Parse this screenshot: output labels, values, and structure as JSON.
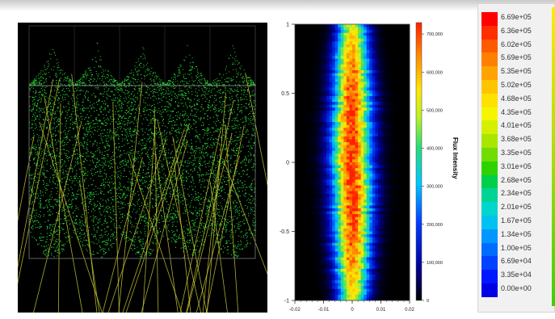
{
  "window": {
    "title": ""
  },
  "left_panel": {
    "title": "",
    "overlay_labels": []
  },
  "middle_panel": {
    "chart_data": {
      "type": "heatmap",
      "title": "",
      "xlabel": "",
      "ylabel": "",
      "colorbar_label": "Flux Intensity",
      "x_ticks": [
        "-0.02",
        "-0.01",
        "0",
        "0.01",
        "0.02"
      ],
      "y_ticks": [
        "1",
        "0.5",
        "0",
        "-0.5",
        "-1"
      ],
      "colorbar_ticks": [
        "700,000",
        "600,000",
        "500,000",
        "400,000",
        "300,000",
        "200,000",
        "100,000",
        "0"
      ],
      "xlim": [
        -0.02,
        0.02
      ],
      "ylim": [
        -1,
        1
      ],
      "zlim": [
        0,
        730000
      ]
    }
  },
  "legend_panel": {
    "title": "",
    "entries": [
      {
        "label": "6.69e+05",
        "color": "#ff0000"
      },
      {
        "label": "6.36e+05",
        "color": "#ff2e00"
      },
      {
        "label": "6.02e+05",
        "color": "#ff5a00"
      },
      {
        "label": "5.69e+05",
        "color": "#ff7f00"
      },
      {
        "label": "5.35e+05",
        "color": "#ffa300"
      },
      {
        "label": "5.02e+05",
        "color": "#ffc400"
      },
      {
        "label": "4.68e+05",
        "color": "#ffe100"
      },
      {
        "label": "4.35e+05",
        "color": "#f5f500"
      },
      {
        "label": "4.01e+05",
        "color": "#d4f000"
      },
      {
        "label": "3.68e+05",
        "color": "#a8e600"
      },
      {
        "label": "3.35e+05",
        "color": "#70dc00"
      },
      {
        "label": "3.01e+05",
        "color": "#2ed200"
      },
      {
        "label": "2.68e+05",
        "color": "#00cf4a"
      },
      {
        "label": "2.34e+05",
        "color": "#00d494"
      },
      {
        "label": "2.01e+05",
        "color": "#00d6cc"
      },
      {
        "label": "1.67e+05",
        "color": "#00c2f0"
      },
      {
        "label": "1.34e+05",
        "color": "#0096ff"
      },
      {
        "label": "1.00e+05",
        "color": "#006cff"
      },
      {
        "label": "6.69e+04",
        "color": "#0042ff"
      },
      {
        "label": "3.35e+04",
        "color": "#0018ff"
      },
      {
        "label": "0.00e+00",
        "color": "#0000e6"
      }
    ]
  },
  "colors": {
    "ray_green": "#30ff40",
    "ray_yellow": "#d8d838",
    "grid": "#9a9a9a"
  }
}
